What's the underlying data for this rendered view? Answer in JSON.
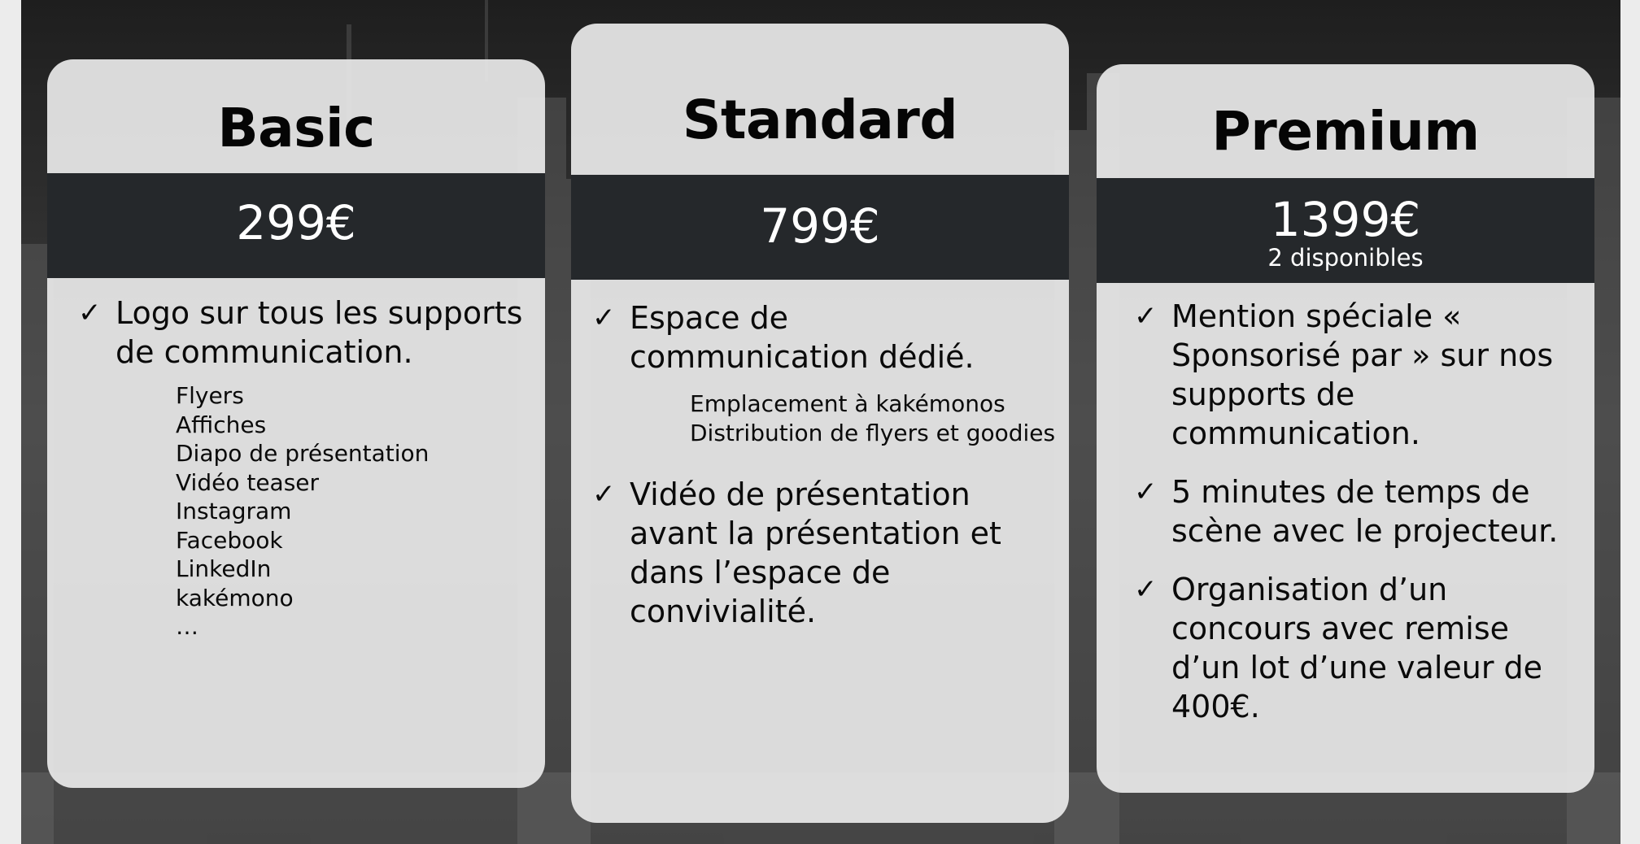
{
  "plans": [
    {
      "name": "Basic",
      "price": "299€",
      "features": [
        {
          "text": "Logo sur tous les supports de communication.",
          "subitems": [
            "Flyers",
            "Affiches",
            "Diapo de présentation",
            "Vidéo teaser",
            "Instagram",
            "Facebook",
            "LinkedIn",
            "kakémono",
            "…"
          ]
        }
      ]
    },
    {
      "name": "Standard",
      "price": "799€",
      "features": [
        {
          "text": "Espace de communication dédié.",
          "subitems": [
            "Emplacement à kakémonos",
            "Distribution de flyers et goodies"
          ]
        },
        {
          "text": "Vidéo de présentation avant la présentation et dans l’espace de convivialité."
        }
      ]
    },
    {
      "name": "Premium",
      "price": "1399€",
      "availability": "2 disponibles",
      "features": [
        {
          "text": "Mention spéciale « Sponsorisé par » sur nos supports de communication."
        },
        {
          "text": "5 minutes de temps de scène avec le projecteur."
        },
        {
          "text": "Organisation d’un concours avec remise d’un lot d’une valeur de 400€."
        }
      ]
    }
  ],
  "check_icon": "✓",
  "colors": {
    "card_background": "#e8e8e8",
    "price_band": "#25282b",
    "price_text": "#ffffff",
    "body_text": "#0a0a0a"
  }
}
